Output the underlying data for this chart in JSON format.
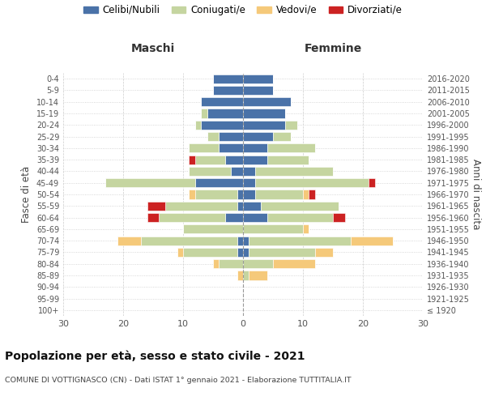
{
  "age_groups": [
    "100+",
    "95-99",
    "90-94",
    "85-89",
    "80-84",
    "75-79",
    "70-74",
    "65-69",
    "60-64",
    "55-59",
    "50-54",
    "45-49",
    "40-44",
    "35-39",
    "30-34",
    "25-29",
    "20-24",
    "15-19",
    "10-14",
    "5-9",
    "0-4"
  ],
  "birth_years": [
    "≤ 1920",
    "1921-1925",
    "1926-1930",
    "1931-1935",
    "1936-1940",
    "1941-1945",
    "1946-1950",
    "1951-1955",
    "1956-1960",
    "1961-1965",
    "1966-1970",
    "1971-1975",
    "1976-1980",
    "1981-1985",
    "1986-1990",
    "1991-1995",
    "1996-2000",
    "2001-2005",
    "2006-2010",
    "2011-2015",
    "2016-2020"
  ],
  "colors": {
    "celibi": "#4a72a8",
    "coniugati": "#c5d5a0",
    "vedovi": "#f5c97a",
    "divorziati": "#cc2222"
  },
  "maschi": {
    "celibi": [
      0,
      0,
      0,
      0,
      0,
      1,
      1,
      0,
      3,
      1,
      1,
      8,
      2,
      3,
      4,
      4,
      7,
      6,
      7,
      5,
      5
    ],
    "coniugati": [
      0,
      0,
      0,
      0,
      4,
      9,
      16,
      10,
      11,
      12,
      7,
      15,
      7,
      5,
      5,
      2,
      1,
      1,
      0,
      0,
      0
    ],
    "vedovi": [
      0,
      0,
      0,
      1,
      1,
      1,
      4,
      0,
      0,
      0,
      1,
      0,
      0,
      0,
      0,
      0,
      0,
      0,
      0,
      0,
      0
    ],
    "divorziati": [
      0,
      0,
      0,
      0,
      0,
      0,
      0,
      0,
      2,
      3,
      0,
      0,
      0,
      1,
      0,
      0,
      0,
      0,
      0,
      0,
      0
    ]
  },
  "femmine": {
    "celibi": [
      0,
      0,
      0,
      0,
      0,
      1,
      1,
      0,
      4,
      3,
      2,
      2,
      2,
      4,
      4,
      5,
      7,
      7,
      8,
      5,
      5
    ],
    "coniugati": [
      0,
      0,
      0,
      1,
      5,
      11,
      17,
      10,
      11,
      13,
      8,
      19,
      13,
      7,
      8,
      3,
      2,
      0,
      0,
      0,
      0
    ],
    "vedovi": [
      0,
      0,
      0,
      3,
      7,
      3,
      7,
      1,
      0,
      0,
      1,
      0,
      0,
      0,
      0,
      0,
      0,
      0,
      0,
      0,
      0
    ],
    "divorziati": [
      0,
      0,
      0,
      0,
      0,
      0,
      0,
      0,
      2,
      0,
      1,
      1,
      0,
      0,
      0,
      0,
      0,
      0,
      0,
      0,
      0
    ]
  },
  "xlim": 30,
  "title": "Popolazione per età, sesso e stato civile - 2021",
  "subtitle": "COMUNE DI VOTTIGNASCO (CN) - Dati ISTAT 1° gennaio 2021 - Elaborazione TUTTITALIA.IT",
  "ylabel_left": "Fasce di età",
  "ylabel_right": "Anni di nascita",
  "legend_labels": [
    "Celibi/Nubili",
    "Coniugati/e",
    "Vedovi/e",
    "Divorziati/e"
  ],
  "maschi_label": "Maschi",
  "femmine_label": "Femmine",
  "bg_color": "#ffffff"
}
